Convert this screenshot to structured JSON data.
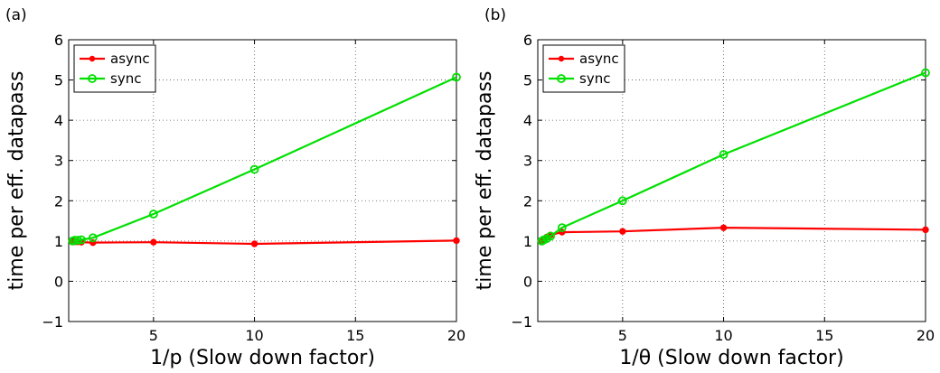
{
  "chart_data": [
    {
      "type": "line",
      "panel_label": "(a)",
      "xlabel": "1/p (Slow down factor)",
      "ylabel": "time per eff. datapass",
      "xlim": [
        0.8,
        20
      ],
      "ylim": [
        -1,
        6
      ],
      "xticks": [
        5,
        10,
        15,
        20
      ],
      "yticks": [
        -1,
        0,
        1,
        2,
        3,
        4,
        5,
        6
      ],
      "grid": true,
      "legend_position": "top-left",
      "series": [
        {
          "name": "async",
          "color": "#ff0000",
          "marker": "dot",
          "x": [
            1,
            1.1,
            1.25,
            1.43,
            2,
            5,
            10,
            20
          ],
          "y": [
            1.0,
            0.98,
            0.98,
            0.97,
            0.96,
            0.97,
            0.93,
            1.01
          ]
        },
        {
          "name": "sync",
          "color": "#00e000",
          "marker": "circle",
          "x": [
            1,
            1.1,
            1.25,
            1.43,
            2,
            5,
            10,
            20
          ],
          "y": [
            1.0,
            1.02,
            1.02,
            1.03,
            1.08,
            1.67,
            2.78,
            5.07
          ]
        }
      ]
    },
    {
      "type": "line",
      "panel_label": "(b)",
      "xlabel": "1/θ (Slow down factor)",
      "ylabel": "time per eff. datapass",
      "xlim": [
        0.8,
        20
      ],
      "ylim": [
        -1,
        6
      ],
      "xticks": [
        5,
        10,
        15,
        20
      ],
      "yticks": [
        -1,
        0,
        1,
        2,
        3,
        4,
        5,
        6
      ],
      "grid": true,
      "legend_position": "top-left",
      "series": [
        {
          "name": "async",
          "color": "#ff0000",
          "marker": "dot",
          "x": [
            1,
            1.1,
            1.25,
            1.43,
            2,
            5,
            10,
            20
          ],
          "y": [
            1.0,
            1.05,
            1.1,
            1.15,
            1.22,
            1.24,
            1.33,
            1.28
          ]
        },
        {
          "name": "sync",
          "color": "#00e000",
          "marker": "circle",
          "x": [
            1,
            1.1,
            1.25,
            1.43,
            2,
            5,
            10,
            20
          ],
          "y": [
            1.0,
            1.03,
            1.06,
            1.12,
            1.33,
            2.0,
            3.15,
            5.18
          ]
        }
      ]
    }
  ]
}
